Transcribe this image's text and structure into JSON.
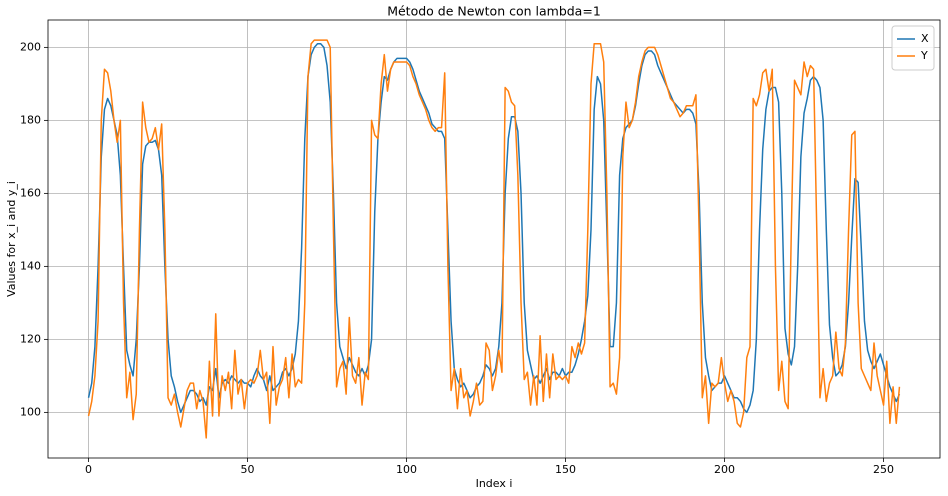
{
  "chart_data": {
    "type": "line",
    "title": "Método de Newton con lambda=1",
    "xlabel": "Index i",
    "ylabel": "Values for x_i and y_i",
    "x": [
      0,
      1,
      2,
      3,
      4,
      5,
      6,
      7,
      8,
      9,
      10,
      11,
      12,
      13,
      14,
      15,
      16,
      17,
      18,
      19,
      20,
      21,
      22,
      23,
      24,
      25,
      26,
      27,
      28,
      29,
      30,
      31,
      32,
      33,
      34,
      35,
      36,
      37,
      38,
      39,
      40,
      41,
      42,
      43,
      44,
      45,
      46,
      47,
      48,
      49,
      50,
      51,
      52,
      53,
      54,
      55,
      56,
      57,
      58,
      59,
      60,
      61,
      62,
      63,
      64,
      65,
      66,
      67,
      68,
      69,
      70,
      71,
      72,
      73,
      74,
      75,
      76,
      77,
      78,
      79,
      80,
      81,
      82,
      83,
      84,
      85,
      86,
      87,
      88,
      89,
      90,
      91,
      92,
      93,
      94,
      95,
      96,
      97,
      98,
      99,
      100,
      101,
      102,
      103,
      104,
      105,
      106,
      107,
      108,
      109,
      110,
      111,
      112,
      113,
      114,
      115,
      116,
      117,
      118,
      119,
      120,
      121,
      122,
      123,
      124,
      125,
      126,
      127,
      128,
      129,
      130,
      131,
      132,
      133,
      134,
      135,
      136,
      137,
      138,
      139,
      140,
      141,
      142,
      143,
      144,
      145,
      146,
      147,
      148,
      149,
      150,
      151,
      152,
      153,
      154,
      155,
      156,
      157,
      158,
      159,
      160,
      161,
      162,
      163,
      164,
      165,
      166,
      167,
      168,
      169,
      170,
      171,
      172,
      173,
      174,
      175,
      176,
      177,
      178,
      179,
      180,
      181,
      182,
      183,
      184,
      185,
      186,
      187,
      188,
      189,
      190,
      191,
      192,
      193,
      194,
      195,
      196,
      197,
      198,
      199,
      200,
      201,
      202,
      203,
      204,
      205,
      206,
      207,
      208,
      209,
      210,
      211,
      212,
      213,
      214,
      215,
      216,
      217,
      218,
      219,
      220,
      221,
      222,
      223,
      224,
      225,
      226,
      227,
      228,
      229,
      230,
      231,
      232,
      233,
      234,
      235,
      236,
      237,
      238,
      239,
      240,
      241,
      242,
      243,
      244,
      245,
      246,
      247,
      248,
      249,
      250,
      251,
      252,
      253,
      254,
      255
    ],
    "series": [
      {
        "name": "X",
        "color": "#1f77b4",
        "values": [
          104,
          108,
          118,
          140,
          170,
          183,
          186,
          184,
          180,
          176,
          165,
          140,
          117,
          113,
          110,
          120,
          140,
          168,
          173,
          174,
          174,
          174.5,
          172,
          165,
          140,
          120,
          110,
          107,
          103,
          100,
          102,
          104,
          106,
          106,
          105,
          103,
          104,
          102,
          107,
          106,
          112,
          104,
          108,
          109,
          108,
          110,
          109,
          108,
          109,
          108,
          108,
          107,
          110,
          112,
          110,
          109,
          106,
          110,
          106,
          107,
          108,
          111,
          112,
          110,
          112,
          116,
          125,
          145,
          175,
          192,
          198,
          200,
          201,
          201,
          200,
          195,
          185,
          160,
          130,
          118,
          115,
          112,
          115,
          113,
          111,
          110,
          112,
          110,
          113,
          120,
          155,
          175,
          185,
          192,
          191,
          194,
          196,
          197,
          197,
          197,
          197,
          196,
          194,
          191,
          188,
          186,
          184,
          182,
          179,
          178,
          177,
          177,
          175,
          150,
          125,
          112,
          109,
          107,
          108,
          106,
          104,
          105,
          107,
          108,
          110,
          113,
          112,
          110,
          112,
          118,
          130,
          160,
          175,
          181,
          181,
          177,
          160,
          130,
          117,
          113,
          109,
          110,
          108,
          110,
          112,
          109,
          111,
          111,
          110,
          112,
          110,
          111,
          111,
          113,
          116,
          120,
          125,
          132,
          150,
          183,
          192,
          190,
          180,
          150,
          118,
          118,
          130,
          165,
          175,
          178,
          179,
          180,
          184,
          190,
          195,
          198,
          199,
          199,
          198,
          195,
          193,
          191,
          189,
          187,
          185,
          184,
          183,
          182,
          183,
          183,
          182,
          179,
          160,
          130,
          115,
          110,
          106,
          107,
          108,
          108,
          110,
          108,
          106,
          104,
          104,
          103,
          101,
          100,
          102,
          106,
          120,
          150,
          172,
          183,
          188,
          189,
          189,
          185,
          160,
          123,
          116,
          113,
          118,
          140,
          170,
          182,
          186,
          191,
          192,
          191,
          189,
          180,
          150,
          124,
          115,
          110,
          111,
          113,
          118,
          130,
          148,
          164,
          163,
          145,
          125,
          117,
          114,
          112,
          114,
          116,
          113,
          110,
          107,
          105,
          103,
          105
        ]
      },
      {
        "name": "Y",
        "color": "#ff7f0e",
        "values": [
          99,
          103,
          110,
          125,
          180,
          194,
          193,
          188,
          180,
          174,
          180,
          130,
          104,
          111,
          98,
          105,
          150,
          185,
          178,
          174,
          175,
          178,
          172,
          179,
          150,
          104,
          102,
          105,
          100,
          96,
          101,
          106,
          108,
          108,
          101,
          106,
          103,
          93,
          114,
          99,
          127,
          99,
          110,
          106,
          111,
          101,
          117,
          105,
          109,
          101,
          108,
          109,
          108,
          110,
          117,
          109,
          111,
          97,
          118,
          102,
          107,
          109,
          115,
          104,
          116,
          107,
          109,
          108,
          130,
          192,
          201,
          202,
          202,
          202,
          202,
          202,
          200,
          150,
          107,
          112,
          114,
          105,
          126,
          110,
          108,
          115,
          102,
          111,
          109,
          180,
          176,
          175,
          190,
          198,
          188,
          194,
          196,
          196,
          196,
          196,
          196,
          195,
          192,
          190,
          187,
          185,
          183,
          180,
          178,
          177,
          178,
          178,
          193,
          140,
          106,
          112,
          101,
          112,
          104,
          106,
          99,
          103,
          108,
          102,
          103,
          119,
          117,
          106,
          110,
          117,
          111,
          189,
          188,
          185,
          184,
          165,
          130,
          109,
          111,
          102,
          110,
          102,
          121,
          103,
          116,
          104,
          116,
          109,
          110,
          109,
          110,
          108,
          118,
          115,
          119,
          116,
          119,
          150,
          190,
          201,
          201,
          201,
          196,
          160,
          107,
          108,
          105,
          115,
          170,
          185,
          178,
          180,
          185,
          192,
          196,
          199,
          200,
          200,
          200,
          198,
          195,
          192,
          189,
          186,
          185,
          183,
          181,
          182,
          184,
          184,
          184,
          187,
          150,
          104,
          110,
          97,
          108,
          107,
          108,
          115,
          108,
          103,
          106,
          103,
          97,
          96,
          100,
          115,
          118,
          186,
          184,
          187,
          193,
          194,
          188,
          194,
          140,
          106,
          114,
          103,
          101,
          150,
          191,
          189,
          187,
          196,
          192,
          195,
          194,
          150,
          104,
          112,
          103,
          108,
          110,
          122,
          112,
          110,
          119,
          150,
          176,
          177,
          130,
          112,
          110,
          108,
          106,
          119,
          110,
          106,
          102,
          114,
          97,
          107,
          97,
          107
        ]
      }
    ],
    "xlim": [
      -12.75,
      267.75
    ],
    "ylim": [
      87.5,
      207.5
    ],
    "xticks": [
      0,
      50,
      100,
      150,
      200,
      250
    ],
    "yticks": [
      100,
      120,
      140,
      160,
      180,
      200
    ],
    "grid": true,
    "legend": "upper right"
  }
}
